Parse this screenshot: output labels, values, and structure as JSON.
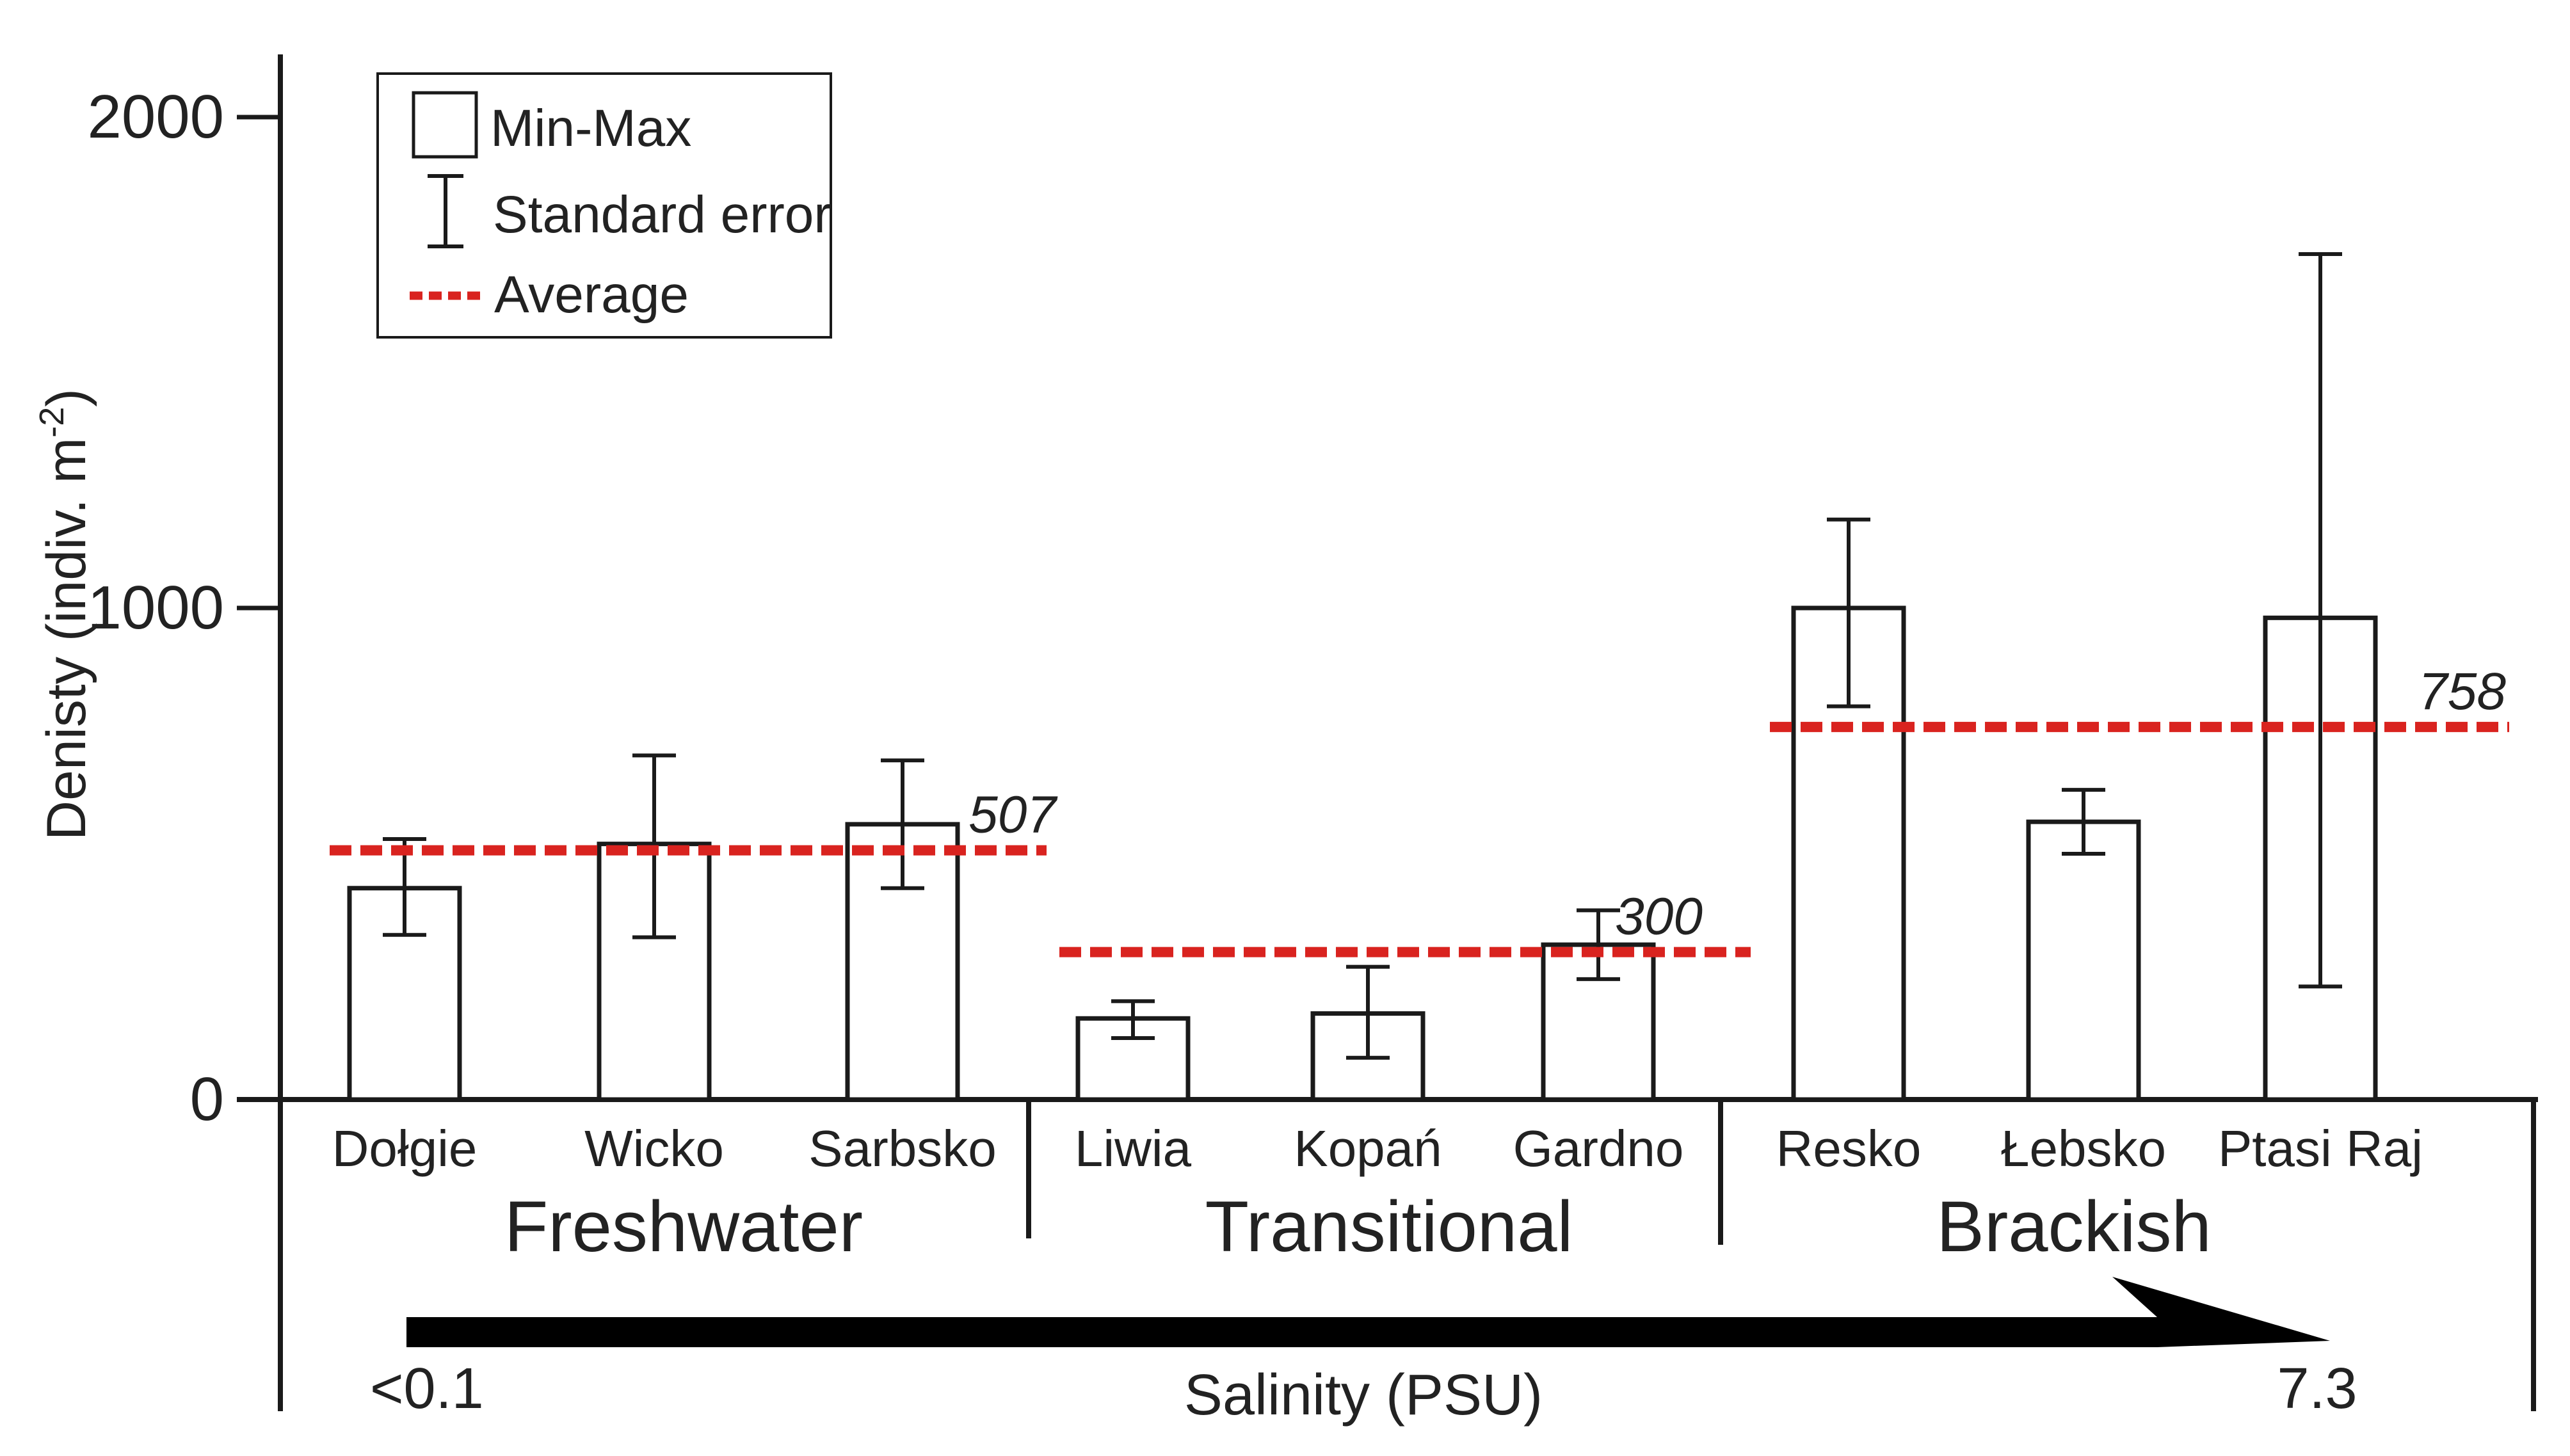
{
  "chart_data": {
    "type": "bar",
    "ylabel": "Denisty (indiv. m",
    "ylabel_sup": "-2",
    "ylabel_close": ")",
    "yticks": [
      0,
      1000,
      2000
    ],
    "ylim": [
      0,
      2100
    ],
    "categories": [
      "Dołgie",
      "Wicko",
      "Sarbsko",
      "Liwia",
      "Kopań",
      "Gardno",
      "Resko",
      "Łebsko",
      "Ptasi Raj"
    ],
    "groups": [
      {
        "name": "Freshwater",
        "members": [
          0,
          1,
          2
        ],
        "average": 507,
        "average_label": "507"
      },
      {
        "name": "Transitional",
        "members": [
          3,
          4,
          5
        ],
        "average": 300,
        "average_label": "300"
      },
      {
        "name": "Brackish",
        "members": [
          6,
          7,
          8
        ],
        "average": 758,
        "average_label": "758"
      }
    ],
    "series": [
      {
        "name": "Min-Max",
        "values": [
          430,
          520,
          560,
          165,
          175,
          315,
          1000,
          565,
          980
        ]
      },
      {
        "name": "Standard error low",
        "values": [
          335,
          330,
          430,
          125,
          85,
          245,
          800,
          500,
          230
        ]
      },
      {
        "name": "Standard error high",
        "values": [
          530,
          700,
          690,
          200,
          270,
          385,
          1180,
          630,
          1720
        ]
      }
    ],
    "legend": {
      "position": "top-left",
      "entries": [
        "Min-Max",
        "Standard error",
        "Average"
      ]
    },
    "salinity": {
      "title": "Salinity (PSU)",
      "min_label": "<0.1",
      "max_label": "7.3"
    },
    "colors": {
      "bar_stroke": "#1a1a1a",
      "average": "#d9231f",
      "axis": "#1a1a1a"
    }
  }
}
